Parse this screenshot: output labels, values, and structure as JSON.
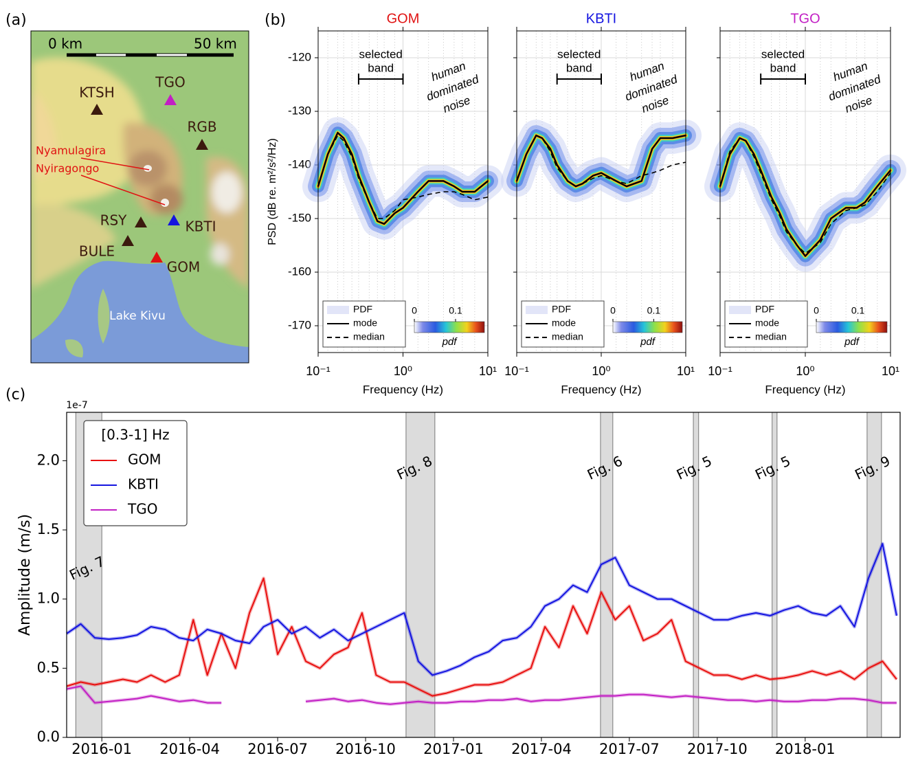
{
  "map": {
    "panel_label": "(a)",
    "scale_labels": [
      "0 km",
      "50 km"
    ],
    "stations": [
      {
        "label": "KTSH",
        "color": "#3b1a0e"
      },
      {
        "label": "TGO",
        "color": "#c21fc4"
      },
      {
        "label": "RGB",
        "color": "#3b1a0e"
      },
      {
        "label": "RSY",
        "color": "#3b1a0e"
      },
      {
        "label": "KBTI",
        "color": "#1414e0"
      },
      {
        "label": "BULE",
        "color": "#3b1a0e"
      },
      {
        "label": "GOM",
        "color": "#e01212"
      }
    ],
    "volcanoes": [
      {
        "label": "Nyamulagira",
        "color": "#e01212"
      },
      {
        "label": "Nyiragongo",
        "color": "#e01212"
      }
    ],
    "lake": "Lake Kivu"
  },
  "chart_data": [
    {
      "type": "psd",
      "panel_label": "(b)",
      "title": "GOM",
      "title_color": "#e01212",
      "y_label": "PSD (dB re. m²/s²/Hz)",
      "x_label": "Frequency (Hz)",
      "log_x": true,
      "xlim": [
        0.1,
        10
      ],
      "xticks": [
        {
          "value": 0.1,
          "label": "10⁻¹"
        },
        {
          "value": 1,
          "label": "10⁰"
        },
        {
          "value": 10,
          "label": "10¹"
        }
      ],
      "ylim": [
        -175,
        -115
      ],
      "yticks": [
        -120,
        -130,
        -140,
        -150,
        -160,
        -170
      ],
      "grid": true,
      "selected_band": [
        0.3,
        1
      ],
      "band_label": [
        "selected",
        "band"
      ],
      "noise_label": [
        "human",
        "dominated",
        "noise"
      ],
      "pdf_label": "PDF",
      "colorbar": {
        "label": "pdf",
        "lim": [
          0,
          0.17
        ],
        "ticks": [
          0,
          0.1
        ]
      },
      "x": [
        0.1,
        0.13,
        0.17,
        0.2,
        0.25,
        0.3,
        0.4,
        0.5,
        0.6,
        0.8,
        1,
        1.5,
        2,
        3,
        4,
        5,
        7,
        10
      ],
      "series": [
        {
          "name": "mode",
          "color": "#000000",
          "dashed": false,
          "values": [
            -144,
            -138,
            -134,
            -135,
            -138,
            -142,
            -147,
            -150.5,
            -151,
            -149,
            -148,
            -145,
            -143,
            -143,
            -144,
            -145,
            -145,
            -143
          ]
        },
        {
          "name": "median",
          "color": "#000000",
          "dashed": true,
          "values": [
            -144,
            -138,
            -134.5,
            -135.5,
            -138.5,
            -142.5,
            -147,
            -150,
            -150,
            -148.5,
            -146.5,
            -146,
            -145.5,
            -145,
            -145,
            -145.5,
            -146.5,
            -146
          ]
        }
      ]
    },
    {
      "type": "psd",
      "title": "KBTI",
      "title_color": "#1414e0",
      "x_label": "Frequency (Hz)",
      "log_x": true,
      "xlim": [
        0.1,
        10
      ],
      "xticks": [
        {
          "value": 0.1,
          "label": "10⁻¹"
        },
        {
          "value": 1,
          "label": "10⁰"
        },
        {
          "value": 10,
          "label": "10¹"
        }
      ],
      "ylim": [
        -175,
        -115
      ],
      "yticks": [
        -120,
        -130,
        -140,
        -150,
        -160,
        -170
      ],
      "grid": true,
      "selected_band": [
        0.3,
        1
      ],
      "band_label": [
        "selected",
        "band"
      ],
      "noise_label": [
        "human",
        "dominated",
        "noise"
      ],
      "pdf_label": "PDF",
      "colorbar": {
        "label": "pdf",
        "lim": [
          0,
          0.17
        ],
        "ticks": [
          0,
          0.1
        ]
      },
      "x": [
        0.1,
        0.13,
        0.17,
        0.2,
        0.25,
        0.3,
        0.4,
        0.5,
        0.6,
        0.8,
        1,
        1.5,
        2,
        3,
        4,
        5,
        7,
        10
      ],
      "series": [
        {
          "name": "mode",
          "color": "#000000",
          "dashed": false,
          "values": [
            -143,
            -138,
            -134.5,
            -135,
            -137,
            -140,
            -143,
            -144,
            -143.5,
            -142,
            -141.5,
            -143,
            -144,
            -143,
            -137,
            -135,
            -135,
            -134.5
          ]
        },
        {
          "name": "median",
          "color": "#000000",
          "dashed": true,
          "values": [
            -143,
            -138,
            -134.5,
            -135,
            -137.5,
            -140.5,
            -143,
            -144,
            -143.5,
            -142.5,
            -142,
            -143,
            -143.5,
            -142,
            -141.5,
            -141,
            -140,
            -139.5
          ]
        }
      ]
    },
    {
      "type": "psd",
      "title": "TGO",
      "title_color": "#c21fc4",
      "x_label": "Frequency (Hz)",
      "log_x": true,
      "xlim": [
        0.1,
        10
      ],
      "xticks": [
        {
          "value": 0.1,
          "label": "10⁻¹"
        },
        {
          "value": 1,
          "label": "10⁰"
        },
        {
          "value": 10,
          "label": "10¹"
        }
      ],
      "ylim": [
        -175,
        -115
      ],
      "yticks": [
        -120,
        -130,
        -140,
        -150,
        -160,
        -170
      ],
      "grid": true,
      "selected_band": [
        0.3,
        1
      ],
      "band_label": [
        "selected",
        "band"
      ],
      "noise_label": [
        "human",
        "dominated",
        "noise"
      ],
      "pdf_label": "PDF",
      "colorbar": {
        "label": "pdf",
        "lim": [
          0,
          0.17
        ],
        "ticks": [
          0,
          0.1
        ]
      },
      "x": [
        0.1,
        0.13,
        0.17,
        0.2,
        0.25,
        0.3,
        0.4,
        0.5,
        0.6,
        0.8,
        1,
        1.5,
        2,
        3,
        4,
        5,
        7,
        10
      ],
      "series": [
        {
          "name": "mode",
          "color": "#000000",
          "dashed": false,
          "values": [
            -144,
            -138,
            -135,
            -135.5,
            -138,
            -141,
            -146,
            -149,
            -152,
            -155,
            -157,
            -154,
            -150,
            -148,
            -148,
            -147,
            -144,
            -141
          ]
        },
        {
          "name": "median",
          "color": "#000000",
          "dashed": true,
          "values": [
            -144,
            -137.5,
            -135,
            -135.5,
            -138.5,
            -141.5,
            -146.5,
            -149.5,
            -152.5,
            -155,
            -156.5,
            -154.5,
            -151,
            -148.5,
            -148,
            -147.5,
            -145,
            -141.5
          ]
        }
      ]
    },
    {
      "type": "line",
      "panel_label": "(c)",
      "y_label": "Amplitude (m/s)",
      "y_offset_label": "1e-7",
      "legend_title": "[0.3-1] Hz",
      "legend": "upper left",
      "xlim": [
        2015.9,
        2018.27
      ],
      "xticks": [
        {
          "value": 2016.0,
          "label": "2016-01"
        },
        {
          "value": 2016.25,
          "label": "2016-04"
        },
        {
          "value": 2016.5,
          "label": "2016-07"
        },
        {
          "value": 2016.75,
          "label": "2016-10"
        },
        {
          "value": 2017.0,
          "label": "2017-01"
        },
        {
          "value": 2017.25,
          "label": "2017-04"
        },
        {
          "value": 2017.5,
          "label": "2017-07"
        },
        {
          "value": 2017.75,
          "label": "2017-10"
        },
        {
          "value": 2018.0,
          "label": "2018-01"
        }
      ],
      "ylim": [
        0,
        2.35
      ],
      "yticks": [
        {
          "value": 0,
          "label": "0.0"
        },
        0.5,
        {
          "value": 1,
          "label": "1.0"
        },
        1.5,
        {
          "value": 2,
          "label": "2.0"
        }
      ],
      "spans": [
        {
          "start": 2015.926,
          "end": 2016.0,
          "label": "Fig. 7"
        },
        {
          "start": 2016.865,
          "end": 2016.947,
          "label": "Fig. 8"
        },
        {
          "start": 2017.418,
          "end": 2017.453,
          "label": "Fig. 6"
        },
        {
          "start": 2017.682,
          "end": 2017.697,
          "label": "Fig. 5"
        },
        {
          "start": 2017.906,
          "end": 2017.92,
          "label": "Fig. 5"
        },
        {
          "start": 2018.176,
          "end": 2018.217,
          "label": "Fig. 9"
        }
      ],
      "x": [
        2015.9,
        2015.94,
        2015.98,
        2016.02,
        2016.06,
        2016.1,
        2016.14,
        2016.18,
        2016.22,
        2016.26,
        2016.3,
        2016.34,
        2016.38,
        2016.42,
        2016.46,
        2016.5,
        2016.54,
        2016.58,
        2016.62,
        2016.66,
        2016.7,
        2016.74,
        2016.78,
        2016.82,
        2016.86,
        2016.9,
        2016.94,
        2016.98,
        2017.02,
        2017.06,
        2017.1,
        2017.14,
        2017.18,
        2017.22,
        2017.26,
        2017.3,
        2017.34,
        2017.38,
        2017.42,
        2017.46,
        2017.5,
        2017.54,
        2017.58,
        2017.62,
        2017.66,
        2017.7,
        2017.74,
        2017.78,
        2017.82,
        2017.86,
        2017.9,
        2017.94,
        2017.98,
        2018.02,
        2018.06,
        2018.1,
        2018.14,
        2018.18,
        2018.22,
        2018.26
      ],
      "series": [
        {
          "name": "GOM",
          "color": "#e81010",
          "values": [
            0.37,
            0.4,
            0.38,
            0.4,
            0.42,
            0.4,
            0.45,
            0.4,
            0.45,
            0.85,
            0.45,
            0.75,
            0.5,
            0.9,
            1.15,
            0.6,
            0.8,
            0.55,
            0.5,
            0.6,
            0.65,
            0.9,
            0.45,
            0.4,
            0.4,
            0.35,
            0.3,
            0.32,
            0.35,
            0.38,
            0.38,
            0.4,
            0.45,
            0.5,
            0.8,
            0.65,
            0.95,
            0.75,
            1.05,
            0.85,
            0.95,
            0.7,
            0.75,
            0.85,
            0.55,
            0.5,
            0.45,
            0.45,
            0.42,
            0.45,
            0.42,
            0.43,
            0.45,
            0.48,
            0.45,
            0.48,
            0.42,
            0.5,
            0.55,
            0.42
          ]
        },
        {
          "name": "KBTI",
          "color": "#1414e0",
          "values": [
            0.75,
            0.82,
            0.72,
            0.71,
            0.72,
            0.74,
            0.8,
            0.78,
            0.72,
            0.7,
            0.78,
            0.75,
            0.7,
            0.68,
            0.8,
            0.85,
            0.75,
            0.8,
            0.72,
            0.78,
            0.7,
            0.75,
            0.8,
            0.85,
            0.9,
            0.55,
            0.45,
            0.48,
            0.52,
            0.58,
            0.62,
            0.7,
            0.72,
            0.8,
            0.95,
            1.0,
            1.1,
            1.05,
            1.25,
            1.3,
            1.1,
            1.05,
            1.0,
            1.0,
            0.95,
            0.9,
            0.85,
            0.85,
            0.88,
            0.9,
            0.88,
            0.92,
            0.95,
            0.9,
            0.88,
            0.95,
            0.8,
            1.15,
            1.4,
            0.88
          ]
        },
        {
          "name": "TGO",
          "color": "#c21fc4",
          "values": [
            0.35,
            0.37,
            0.25,
            0.26,
            0.27,
            0.28,
            0.3,
            0.28,
            0.26,
            0.27,
            0.25,
            0.25,
            null,
            null,
            null,
            null,
            null,
            0.26,
            0.27,
            0.28,
            0.26,
            0.27,
            0.25,
            0.24,
            0.25,
            0.26,
            0.25,
            0.25,
            0.26,
            0.26,
            0.27,
            0.27,
            0.28,
            0.26,
            0.27,
            0.27,
            0.28,
            0.29,
            0.3,
            0.3,
            0.31,
            0.31,
            0.3,
            0.29,
            0.3,
            0.29,
            0.28,
            0.27,
            0.27,
            0.26,
            0.27,
            0.26,
            0.26,
            0.27,
            0.27,
            0.28,
            0.28,
            0.27,
            0.25,
            0.25
          ]
        }
      ]
    }
  ]
}
